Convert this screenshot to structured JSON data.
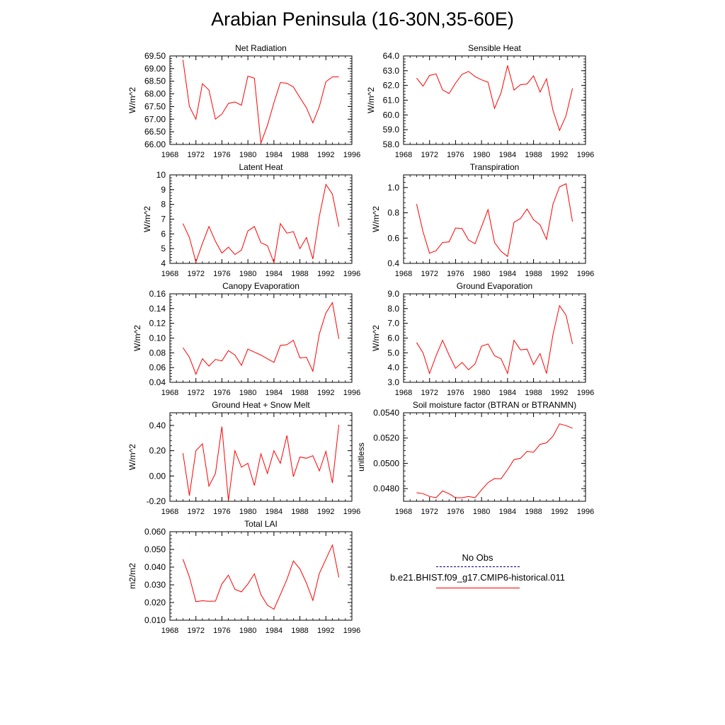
{
  "title": "Arabian Peninsula (16-30N,35-60E)",
  "legend": {
    "entries": [
      {
        "label": "No Obs",
        "color": "#000080",
        "style": "dashed"
      },
      {
        "label": "b.e21.BHIST.f09_g17.CMIP6-historical.011",
        "color": "#ff0000",
        "style": "solid"
      }
    ]
  },
  "series_color": "#ff0000",
  "chart_data": [
    {
      "type": "line",
      "title": "Net Radiation",
      "ylabel": "W/m^2",
      "xlim": [
        1968,
        1996
      ],
      "x_ticks": [
        "1968",
        "1972",
        "1976",
        "1980",
        "1984",
        "1988",
        "1992",
        "1996"
      ],
      "ylim": [
        66.0,
        69.5
      ],
      "y_ticks": [
        "66.00",
        "66.50",
        "67.00",
        "67.50",
        "68.00",
        "68.50",
        "69.00",
        "69.50"
      ],
      "x": [
        1970,
        1971,
        1972,
        1973,
        1974,
        1975,
        1976,
        1977,
        1978,
        1979,
        1980,
        1981,
        1982,
        1983,
        1984,
        1985,
        1986,
        1987,
        1988,
        1989,
        1990,
        1991,
        1992,
        1993,
        1994
      ],
      "values": [
        69.35,
        67.5,
        67.0,
        68.4,
        68.15,
        67.0,
        67.2,
        67.62,
        67.68,
        67.55,
        68.7,
        68.62,
        66.05,
        66.75,
        67.65,
        68.45,
        68.42,
        68.27,
        67.85,
        67.45,
        66.85,
        67.5,
        68.48,
        68.67,
        68.67
      ]
    },
    {
      "type": "line",
      "title": "Sensible Heat",
      "ylabel": "W/m^2",
      "xlim": [
        1968,
        1996
      ],
      "x_ticks": [
        "1968",
        "1972",
        "1976",
        "1980",
        "1984",
        "1988",
        "1992",
        "1996"
      ],
      "ylim": [
        58.0,
        64.0
      ],
      "y_ticks": [
        "58.0",
        "59.0",
        "60.0",
        "61.0",
        "62.0",
        "63.0",
        "64.0"
      ],
      "x": [
        1970,
        1971,
        1972,
        1973,
        1974,
        1975,
        1976,
        1977,
        1978,
        1979,
        1980,
        1981,
        1982,
        1983,
        1984,
        1985,
        1986,
        1987,
        1988,
        1989,
        1990,
        1991,
        1992,
        1993,
        1994
      ],
      "values": [
        62.5,
        61.95,
        62.68,
        62.78,
        61.7,
        61.45,
        62.15,
        62.75,
        62.95,
        62.6,
        62.38,
        62.22,
        60.45,
        61.5,
        63.35,
        61.68,
        62.05,
        62.1,
        62.65,
        61.55,
        62.45,
        60.3,
        58.95,
        59.95,
        61.8
      ]
    },
    {
      "type": "line",
      "title": "Latent Heat",
      "ylabel": "W/m^2",
      "xlim": [
        1968,
        1996
      ],
      "x_ticks": [
        "1968",
        "1972",
        "1976",
        "1980",
        "1984",
        "1988",
        "1992",
        "1996"
      ],
      "ylim": [
        4,
        10
      ],
      "y_ticks": [
        "4",
        "5",
        "6",
        "7",
        "8",
        "9",
        "10"
      ],
      "x": [
        1970,
        1971,
        1972,
        1973,
        1974,
        1975,
        1976,
        1977,
        1978,
        1979,
        1980,
        1981,
        1982,
        1983,
        1984,
        1985,
        1986,
        1987,
        1988,
        1989,
        1990,
        1991,
        1992,
        1993,
        1994
      ],
      "values": [
        6.7,
        5.75,
        4.1,
        5.35,
        6.5,
        5.5,
        4.7,
        5.1,
        4.6,
        4.9,
        6.2,
        6.5,
        5.4,
        5.2,
        4.05,
        6.7,
        6.05,
        6.15,
        5.0,
        5.75,
        4.3,
        7.2,
        9.35,
        8.7,
        6.5
      ]
    },
    {
      "type": "line",
      "title": "Transpiration",
      "ylabel": "W/m^2",
      "xlim": [
        1968,
        1996
      ],
      "x_ticks": [
        "1968",
        "1972",
        "1976",
        "1980",
        "1984",
        "1988",
        "1992",
        "1996"
      ],
      "ylim": [
        0.4,
        1.1
      ],
      "y_ticks": [
        "0.4",
        "0.6",
        "0.8",
        "1.0"
      ],
      "x": [
        1970,
        1971,
        1972,
        1973,
        1974,
        1975,
        1976,
        1977,
        1978,
        1979,
        1980,
        1981,
        1982,
        1983,
        1984,
        1985,
        1986,
        1987,
        1988,
        1989,
        1990,
        1991,
        1992,
        1993,
        1994
      ],
      "values": [
        0.87,
        0.65,
        0.48,
        0.5,
        0.565,
        0.57,
        0.68,
        0.675,
        0.585,
        0.555,
        0.69,
        0.825,
        0.565,
        0.495,
        0.455,
        0.725,
        0.755,
        0.83,
        0.745,
        0.705,
        0.59,
        0.87,
        1.005,
        1.03,
        0.73
      ]
    },
    {
      "type": "line",
      "title": "Canopy Evaporation",
      "ylabel": "W/m^2",
      "xlim": [
        1968,
        1996
      ],
      "x_ticks": [
        "1968",
        "1972",
        "1976",
        "1980",
        "1984",
        "1988",
        "1992",
        "1996"
      ],
      "ylim": [
        0.04,
        0.16
      ],
      "y_ticks": [
        "0.04",
        "0.06",
        "0.08",
        "0.10",
        "0.12",
        "0.14",
        "0.16"
      ],
      "x": [
        1970,
        1971,
        1972,
        1973,
        1974,
        1975,
        1976,
        1977,
        1978,
        1979,
        1980,
        1981,
        1982,
        1983,
        1984,
        1985,
        1986,
        1987,
        1988,
        1989,
        1990,
        1991,
        1992,
        1993,
        1994
      ],
      "values": [
        0.087,
        0.074,
        0.051,
        0.072,
        0.062,
        0.071,
        0.069,
        0.083,
        0.077,
        0.063,
        0.085,
        0.081,
        0.077,
        0.072,
        0.067,
        0.09,
        0.091,
        0.097,
        0.073,
        0.074,
        0.055,
        0.106,
        0.134,
        0.148,
        0.099
      ]
    },
    {
      "type": "line",
      "title": "Ground Evaporation",
      "ylabel": "W/m^2",
      "xlim": [
        1968,
        1996
      ],
      "x_ticks": [
        "1968",
        "1972",
        "1976",
        "1980",
        "1984",
        "1988",
        "1992",
        "1996"
      ],
      "ylim": [
        3.0,
        9.0
      ],
      "y_ticks": [
        "3.0",
        "4.0",
        "5.0",
        "6.0",
        "7.0",
        "8.0",
        "9.0"
      ],
      "x": [
        1970,
        1971,
        1972,
        1973,
        1974,
        1975,
        1976,
        1977,
        1978,
        1979,
        1980,
        1981,
        1982,
        1983,
        1984,
        1985,
        1986,
        1987,
        1988,
        1989,
        1990,
        1991,
        1992,
        1993,
        1994
      ],
      "values": [
        5.7,
        5.0,
        3.6,
        4.8,
        5.85,
        4.85,
        3.95,
        4.35,
        3.85,
        4.25,
        5.45,
        5.6,
        4.8,
        4.6,
        3.6,
        5.85,
        5.2,
        5.25,
        4.2,
        4.95,
        3.6,
        6.25,
        8.2,
        7.55,
        5.6
      ]
    },
    {
      "type": "line",
      "title": "Ground Heat + Snow Melt",
      "ylabel": "W/m^2",
      "xlim": [
        1968,
        1996
      ],
      "x_ticks": [
        "1968",
        "1972",
        "1976",
        "1980",
        "1984",
        "1988",
        "1992",
        "1996"
      ],
      "ylim": [
        -0.2,
        0.5
      ],
      "y_ticks": [
        "-0.20",
        "0.00",
        "0.20",
        "0.40"
      ],
      "x": [
        1970,
        1971,
        1972,
        1973,
        1974,
        1975,
        1976,
        1977,
        1978,
        1979,
        1980,
        1981,
        1982,
        1983,
        1984,
        1985,
        1986,
        1987,
        1988,
        1989,
        1990,
        1991,
        1992,
        1993,
        1994
      ],
      "values": [
        0.18,
        -0.155,
        0.2,
        0.255,
        -0.08,
        0.02,
        0.39,
        -0.195,
        0.2,
        0.07,
        0.1,
        -0.075,
        0.175,
        0.02,
        0.2,
        0.1,
        0.32,
        -0.005,
        0.15,
        0.14,
        0.16,
        0.04,
        0.195,
        -0.055,
        0.405
      ]
    },
    {
      "type": "line",
      "title": "Soil moisture factor (BTRAN or BTRANMN)",
      "ylabel": "unitless",
      "xlim": [
        1968,
        1996
      ],
      "x_ticks": [
        "1968",
        "1972",
        "1976",
        "1980",
        "1984",
        "1988",
        "1992",
        "1996"
      ],
      "ylim": [
        0.047,
        0.054
      ],
      "y_ticks": [
        "0.0480",
        "0.0500",
        "0.0520",
        "0.0540"
      ],
      "x": [
        1970,
        1971,
        1972,
        1973,
        1974,
        1975,
        1976,
        1977,
        1978,
        1979,
        1980,
        1981,
        1982,
        1983,
        1984,
        1985,
        1986,
        1987,
        1988,
        1989,
        1990,
        1991,
        1992,
        1993,
        1994
      ],
      "values": [
        0.04768,
        0.0476,
        0.04738,
        0.04728,
        0.04782,
        0.0476,
        0.04728,
        0.04728,
        0.04738,
        0.04728,
        0.0479,
        0.04848,
        0.0488,
        0.04878,
        0.0495,
        0.0503,
        0.0504,
        0.05095,
        0.05088,
        0.0515,
        0.05162,
        0.05215,
        0.05312,
        0.05298,
        0.05278
      ]
    },
    {
      "type": "line",
      "title": "Total LAI",
      "ylabel": "m2/m2",
      "xlim": [
        1968,
        1996
      ],
      "x_ticks": [
        "1968",
        "1972",
        "1976",
        "1980",
        "1984",
        "1988",
        "1992",
        "1996"
      ],
      "ylim": [
        0.01,
        0.06
      ],
      "y_ticks": [
        "0.010",
        "0.020",
        "0.030",
        "0.040",
        "0.050",
        "0.060"
      ],
      "x": [
        1970,
        1971,
        1972,
        1973,
        1974,
        1975,
        1976,
        1977,
        1978,
        1979,
        1980,
        1981,
        1982,
        1983,
        1984,
        1985,
        1986,
        1987,
        1988,
        1989,
        1990,
        1991,
        1992,
        1993,
        1994
      ],
      "values": [
        0.0445,
        0.0345,
        0.0205,
        0.021,
        0.0207,
        0.0208,
        0.0305,
        0.0355,
        0.0275,
        0.026,
        0.0305,
        0.0362,
        0.0245,
        0.0185,
        0.0162,
        0.0245,
        0.033,
        0.0435,
        0.039,
        0.031,
        0.0212,
        0.0365,
        0.0445,
        0.0525,
        0.0342
      ]
    }
  ]
}
